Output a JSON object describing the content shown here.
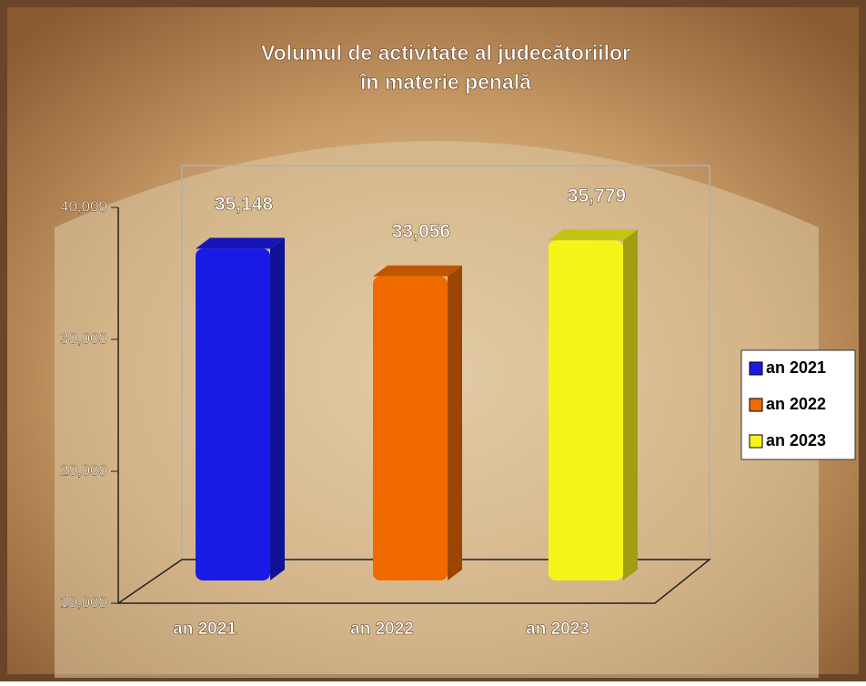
{
  "chart_data": {
    "type": "bar3d",
    "title": "Volumul de activitate al judecătoriilor",
    "subtitle": "în materie penală",
    "categories": [
      "an 2021",
      "an 2022",
      "an 2023"
    ],
    "values": [
      35148,
      33056,
      35779
    ],
    "value_labels": [
      "35,148",
      "33,056",
      "35,779"
    ],
    "colors": [
      "#1a1ae6",
      "#f06a00",
      "#f5f51a"
    ],
    "ylim": [
      10000,
      40000
    ],
    "yticks": [
      {
        "value": 10000,
        "label": "10,000"
      },
      {
        "value": 20000,
        "label": "20,000"
      },
      {
        "value": 30000,
        "label": "30,000"
      },
      {
        "value": 40000,
        "label": "40,000"
      }
    ],
    "legend": "right"
  }
}
